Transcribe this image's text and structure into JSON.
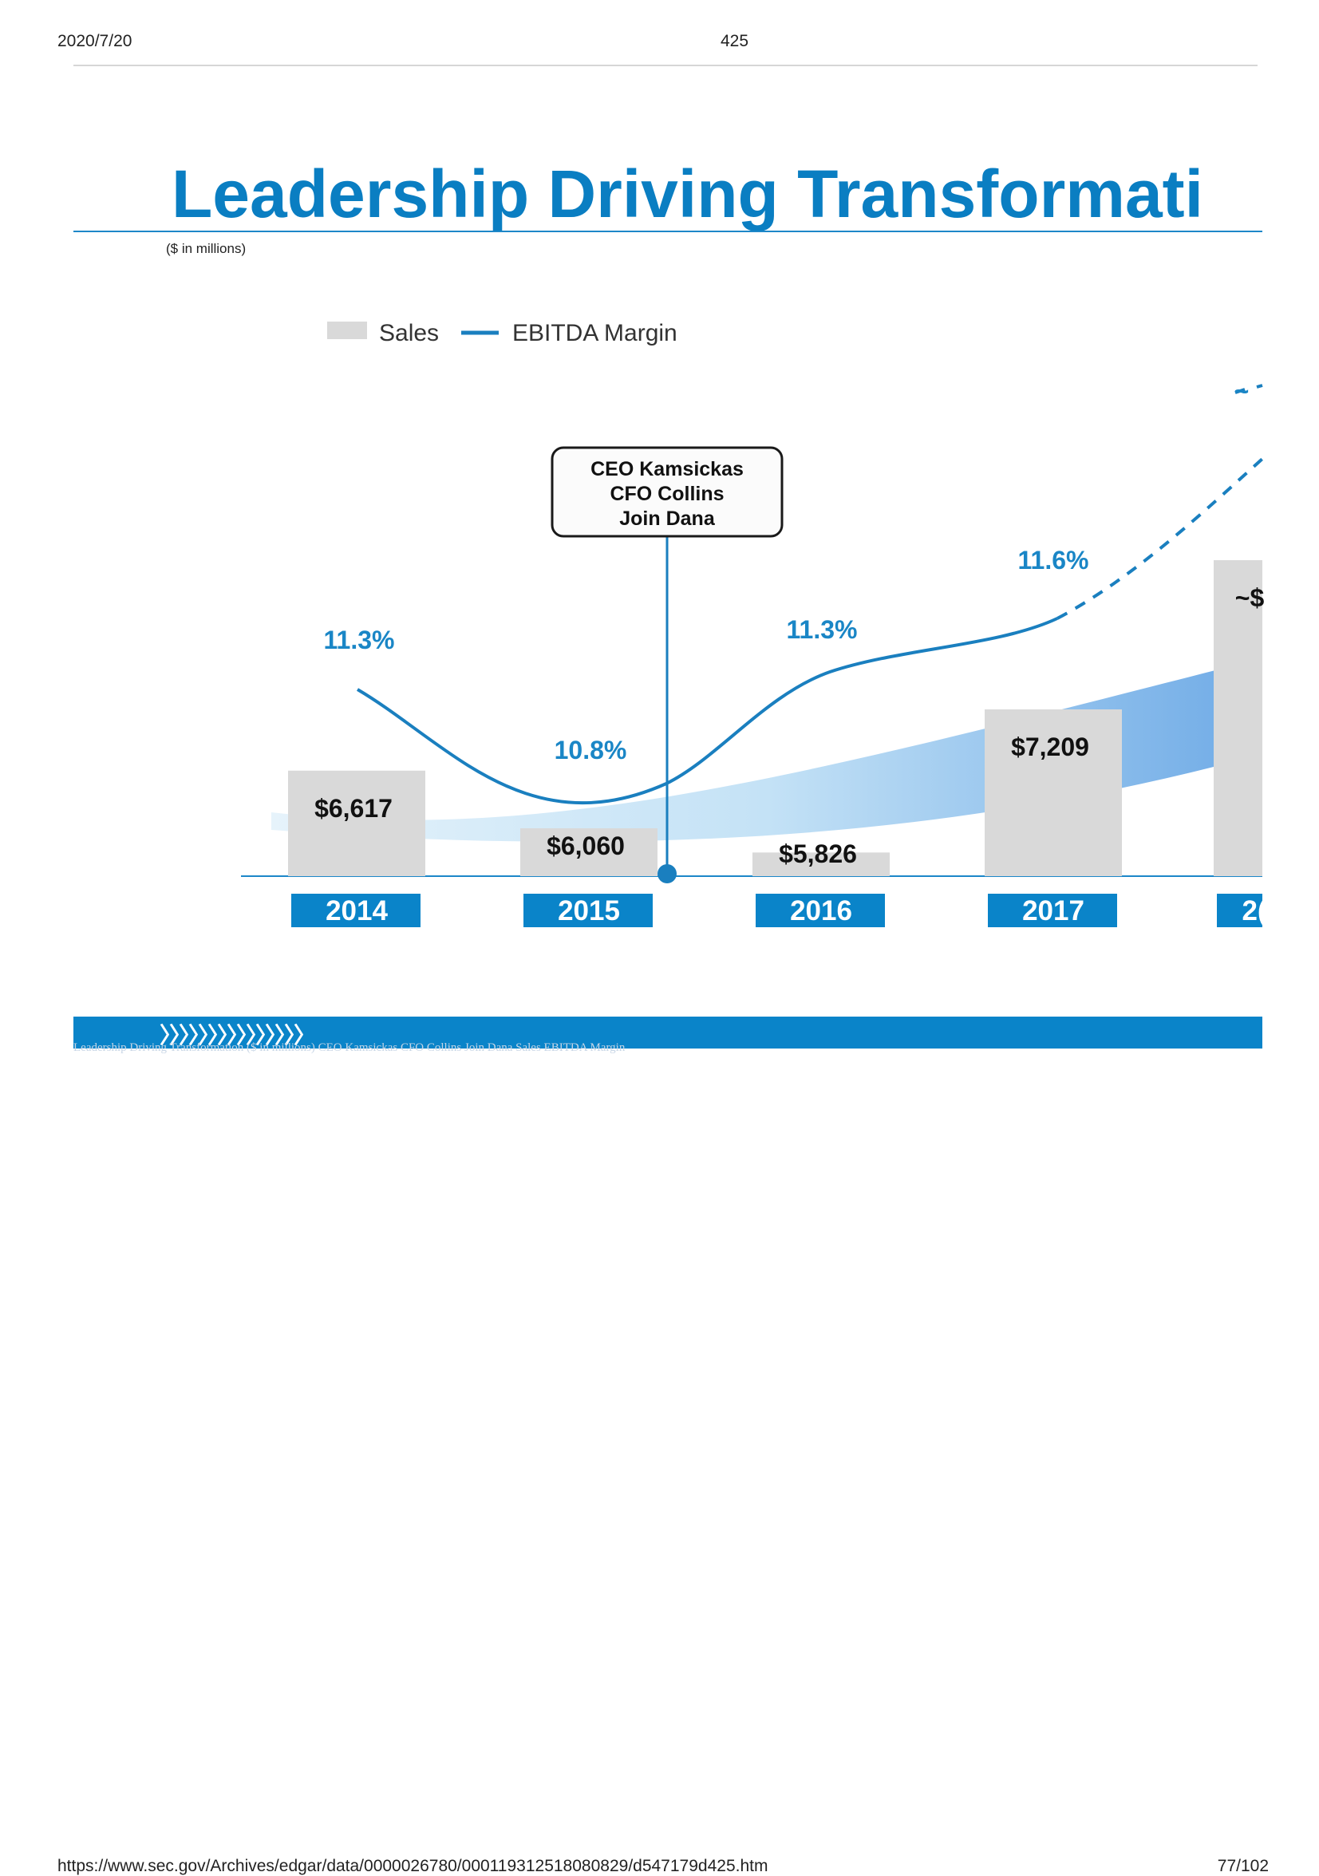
{
  "header": {
    "date": "2020/7/20",
    "page": "425"
  },
  "slide": {
    "title": "Leadership Driving Transformati",
    "units": "($ in millions)",
    "chevrons": "〉〉〉〉〉〉〉〉〉〉〉〉〉〉〉",
    "hidden_text": "Leadership Driving Transformation ($ in millions) CEO Kamsickas CFO Collins Join Dana Sales EBITDA Margin"
  },
  "chart_data": {
    "type": "bar",
    "categories": [
      "2014",
      "2015",
      "2016",
      "2017",
      "2("
    ],
    "series": [
      {
        "name": "Sales",
        "type": "bar",
        "values": [
          6617,
          6060,
          5826,
          7209,
          null
        ],
        "labels": [
          "$6,617",
          "$6,060",
          "$5,826",
          "$7,209",
          "~$"
        ]
      },
      {
        "name": "EBITDA Margin",
        "type": "line",
        "values": [
          11.3,
          10.8,
          11.3,
          11.6,
          null
        ],
        "labels": [
          "11.3%",
          "10.8%",
          "11.3%",
          "11.6%",
          "~"
        ],
        "projection": "dashed"
      }
    ],
    "annotation": {
      "lines": [
        "CEO Kamsickas",
        "CFO Collins",
        "Join Dana"
      ]
    },
    "legend_position": "top",
    "colors": {
      "bar": "#d9d9d9",
      "line": "#1a7fbf",
      "label_blue": "#1a86c6",
      "year_box": "#0a84c9"
    }
  },
  "footer": {
    "url": "https://www.sec.gov/Archives/edgar/data/0000026780/000119312518080829/d547179d425.htm",
    "page": "77/102"
  }
}
